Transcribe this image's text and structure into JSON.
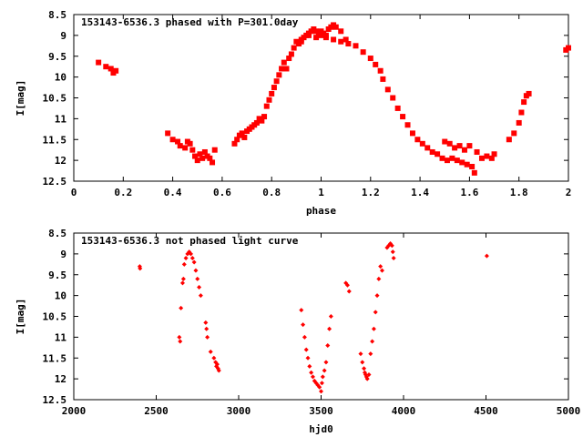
{
  "chart_data": [
    {
      "type": "scatter",
      "title": "153143-6536.3 phased with P=301.0day",
      "xlabel": "phase",
      "ylabel": "I[mag]",
      "xlim": [
        0,
        2
      ],
      "ylim": [
        8.5,
        12.5
      ],
      "y_inverted": true,
      "x_ticks": [
        "0",
        "0.2",
        "0.4",
        "0.6",
        "0.8",
        "1",
        "1.2",
        "1.4",
        "1.6",
        "1.8",
        "2"
      ],
      "y_ticks": [
        "8.5",
        "9",
        "9.5",
        "10",
        "10.5",
        "11",
        "11.5",
        "12",
        "12.5"
      ],
      "grid": false,
      "color": "#ff0000",
      "series": [
        {
          "points": [
            [
              0.1,
              9.65
            ],
            [
              0.13,
              9.75
            ],
            [
              0.15,
              9.8
            ],
            [
              0.16,
              9.9
            ],
            [
              0.17,
              9.85
            ],
            [
              0.38,
              11.35
            ],
            [
              0.4,
              11.5
            ],
            [
              0.42,
              11.55
            ],
            [
              0.43,
              11.65
            ],
            [
              0.45,
              11.7
            ],
            [
              0.46,
              11.55
            ],
            [
              0.47,
              11.6
            ],
            [
              0.48,
              11.75
            ],
            [
              0.49,
              11.9
            ],
            [
              0.5,
              12.0
            ],
            [
              0.51,
              11.85
            ],
            [
              0.52,
              11.95
            ],
            [
              0.53,
              11.8
            ],
            [
              0.54,
              11.9
            ],
            [
              0.55,
              11.95
            ],
            [
              0.56,
              12.05
            ],
            [
              0.57,
              11.75
            ],
            [
              0.65,
              11.6
            ],
            [
              0.66,
              11.5
            ],
            [
              0.67,
              11.4
            ],
            [
              0.68,
              11.35
            ],
            [
              0.69,
              11.45
            ],
            [
              0.7,
              11.3
            ],
            [
              0.71,
              11.25
            ],
            [
              0.72,
              11.2
            ],
            [
              0.73,
              11.15
            ],
            [
              0.74,
              11.1
            ],
            [
              0.75,
              11.0
            ],
            [
              0.76,
              11.05
            ],
            [
              0.77,
              10.95
            ],
            [
              0.78,
              10.7
            ],
            [
              0.79,
              10.55
            ],
            [
              0.8,
              10.4
            ],
            [
              0.81,
              10.25
            ],
            [
              0.82,
              10.1
            ],
            [
              0.83,
              9.95
            ],
            [
              0.84,
              9.8
            ],
            [
              0.85,
              9.65
            ],
            [
              0.86,
              9.8
            ],
            [
              0.87,
              9.55
            ],
            [
              0.88,
              9.45
            ],
            [
              0.89,
              9.3
            ],
            [
              0.9,
              9.15
            ],
            [
              0.91,
              9.2
            ],
            [
              0.92,
              9.1
            ],
            [
              0.93,
              9.05
            ],
            [
              0.94,
              9.0
            ],
            [
              0.95,
              8.95
            ],
            [
              0.96,
              8.9
            ],
            [
              0.97,
              8.85
            ],
            [
              0.98,
              8.9
            ],
            [
              0.99,
              8.95
            ],
            [
              1.0,
              8.9
            ],
            [
              1.01,
              8.95
            ],
            [
              1.02,
              9.0
            ],
            [
              1.03,
              8.85
            ],
            [
              1.04,
              8.8
            ],
            [
              1.05,
              8.75
            ],
            [
              1.06,
              8.8
            ],
            [
              1.08,
              8.9
            ],
            [
              1.1,
              9.1
            ],
            [
              0.92,
              9.15
            ],
            [
              0.95,
              9.0
            ],
            [
              0.98,
              9.05
            ],
            [
              1.0,
              9.0
            ],
            [
              1.02,
              9.05
            ],
            [
              1.05,
              9.1
            ],
            [
              1.08,
              9.15
            ],
            [
              1.11,
              9.2
            ],
            [
              1.14,
              9.25
            ],
            [
              1.17,
              9.4
            ],
            [
              1.2,
              9.55
            ],
            [
              1.22,
              9.7
            ],
            [
              1.24,
              9.85
            ],
            [
              1.25,
              10.05
            ],
            [
              1.27,
              10.3
            ],
            [
              1.29,
              10.5
            ],
            [
              1.31,
              10.75
            ],
            [
              1.33,
              10.95
            ],
            [
              1.35,
              11.15
            ],
            [
              1.37,
              11.35
            ],
            [
              1.39,
              11.5
            ],
            [
              1.41,
              11.6
            ],
            [
              1.43,
              11.7
            ],
            [
              1.45,
              11.8
            ],
            [
              1.47,
              11.85
            ],
            [
              1.49,
              11.95
            ],
            [
              1.5,
              11.55
            ],
            [
              1.51,
              12.0
            ],
            [
              1.52,
              11.6
            ],
            [
              1.53,
              11.95
            ],
            [
              1.54,
              11.7
            ],
            [
              1.55,
              12.0
            ],
            [
              1.56,
              11.65
            ],
            [
              1.57,
              12.05
            ],
            [
              1.58,
              11.75
            ],
            [
              1.59,
              12.1
            ],
            [
              1.6,
              11.65
            ],
            [
              1.61,
              12.15
            ],
            [
              1.62,
              12.3
            ],
            [
              1.63,
              11.8
            ],
            [
              1.65,
              11.95
            ],
            [
              1.67,
              11.9
            ],
            [
              1.69,
              11.95
            ],
            [
              1.7,
              11.85
            ],
            [
              1.76,
              11.5
            ],
            [
              1.78,
              11.35
            ],
            [
              1.8,
              11.1
            ],
            [
              1.81,
              10.85
            ],
            [
              1.82,
              10.6
            ],
            [
              1.83,
              10.45
            ],
            [
              1.84,
              10.4
            ],
            [
              1.99,
              9.35
            ],
            [
              2.0,
              9.3
            ]
          ]
        }
      ]
    },
    {
      "type": "scatter",
      "title": "153143-6536.3 not phased light curve",
      "xlabel": "hjd0",
      "ylabel": "I[mag]",
      "xlim": [
        2000,
        5000
      ],
      "ylim": [
        8.5,
        12.5
      ],
      "y_inverted": true,
      "x_ticks": [
        "2000",
        "2500",
        "3000",
        "3500",
        "4000",
        "4500",
        "5000"
      ],
      "y_ticks": [
        "8.5",
        "9",
        "9.5",
        "10",
        "10.5",
        "11",
        "11.5",
        "12",
        "12.5"
      ],
      "grid": false,
      "color": "#ff0000",
      "series": [
        {
          "points": [
            [
              2400,
              9.3
            ],
            [
              2402,
              9.35
            ],
            [
              2640,
              11.0
            ],
            [
              2645,
              11.1
            ],
            [
              2650,
              10.3
            ],
            [
              2660,
              9.7
            ],
            [
              2665,
              9.6
            ],
            [
              2670,
              9.25
            ],
            [
              2680,
              9.1
            ],
            [
              2690,
              9.0
            ],
            [
              2700,
              8.95
            ],
            [
              2710,
              9.0
            ],
            [
              2720,
              9.1
            ],
            [
              2730,
              9.2
            ],
            [
              2740,
              9.4
            ],
            [
              2750,
              9.6
            ],
            [
              2760,
              9.8
            ],
            [
              2770,
              10.0
            ],
            [
              2800,
              10.65
            ],
            [
              2805,
              10.8
            ],
            [
              2810,
              11.0
            ],
            [
              2830,
              11.35
            ],
            [
              2850,
              11.5
            ],
            [
              2860,
              11.6
            ],
            [
              2865,
              11.7
            ],
            [
              2870,
              11.65
            ],
            [
              2875,
              11.75
            ],
            [
              2880,
              11.8
            ],
            [
              3380,
              10.35
            ],
            [
              3390,
              10.7
            ],
            [
              3400,
              11.0
            ],
            [
              3410,
              11.3
            ],
            [
              3420,
              11.5
            ],
            [
              3430,
              11.7
            ],
            [
              3440,
              11.85
            ],
            [
              3450,
              11.95
            ],
            [
              3460,
              12.05
            ],
            [
              3470,
              12.1
            ],
            [
              3480,
              12.15
            ],
            [
              3490,
              12.2
            ],
            [
              3500,
              12.3
            ],
            [
              3505,
              12.1
            ],
            [
              3510,
              11.95
            ],
            [
              3520,
              11.8
            ],
            [
              3530,
              11.6
            ],
            [
              3540,
              11.2
            ],
            [
              3550,
              10.8
            ],
            [
              3560,
              10.5
            ],
            [
              3650,
              9.7
            ],
            [
              3660,
              9.75
            ],
            [
              3670,
              9.9
            ],
            [
              3740,
              11.4
            ],
            [
              3750,
              11.6
            ],
            [
              3760,
              11.75
            ],
            [
              3765,
              11.85
            ],
            [
              3770,
              11.9
            ],
            [
              3775,
              11.95
            ],
            [
              3780,
              12.0
            ],
            [
              3790,
              11.9
            ],
            [
              3800,
              11.4
            ],
            [
              3810,
              11.1
            ],
            [
              3820,
              10.8
            ],
            [
              3830,
              10.4
            ],
            [
              3840,
              10.0
            ],
            [
              3850,
              9.6
            ],
            [
              3860,
              9.3
            ],
            [
              3870,
              9.4
            ],
            [
              3900,
              8.85
            ],
            [
              3910,
              8.8
            ],
            [
              3920,
              8.75
            ],
            [
              3930,
              8.8
            ],
            [
              3935,
              8.95
            ],
            [
              3940,
              9.1
            ],
            [
              4505,
              9.05
            ]
          ]
        }
      ]
    }
  ]
}
